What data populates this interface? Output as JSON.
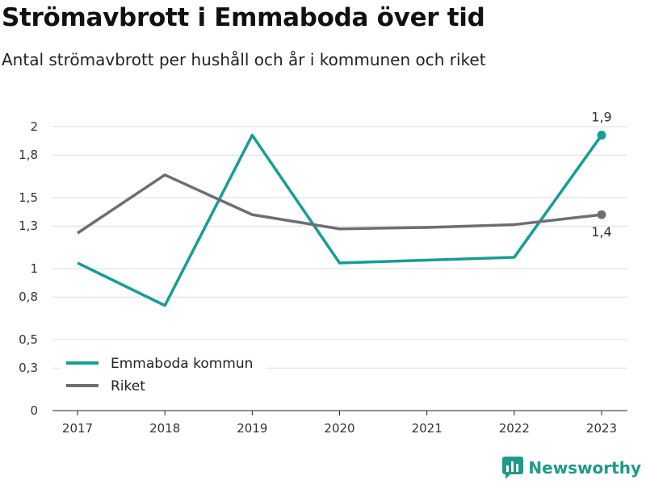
{
  "title": "Strömavbrott i Emmaboda över tid",
  "subtitle": "Antal strömavbrott per hushåll och år i kommunen och riket",
  "brand": "Newsworthy",
  "colors": {
    "emmaboda": "#159e94",
    "riket": "#6e6d73",
    "grid": "#dddddd",
    "brand": "#1f9a8a"
  },
  "chart_data": {
    "type": "line",
    "x": [
      "2017",
      "2018",
      "2019",
      "2020",
      "2021",
      "2022",
      "2023"
    ],
    "y_ticks": [
      0,
      0.3,
      0.5,
      0.8,
      1,
      1.3,
      1.5,
      1.8,
      2
    ],
    "y_tick_labels": [
      "0",
      "0,3",
      "0,5",
      "0,8",
      "1",
      "1,3",
      "1,5",
      "1,8",
      "2"
    ],
    "ylim": [
      0,
      2
    ],
    "grid": true,
    "legend_position": "bottom-left",
    "series": [
      {
        "name": "Emmaboda kommun",
        "values": [
          1.04,
          0.74,
          1.94,
          1.04,
          1.06,
          1.08,
          1.94
        ],
        "end_label": "1,9"
      },
      {
        "name": "Riket",
        "values": [
          1.25,
          1.66,
          1.38,
          1.28,
          1.29,
          1.31,
          1.38
        ],
        "end_label": "1,4"
      }
    ]
  }
}
